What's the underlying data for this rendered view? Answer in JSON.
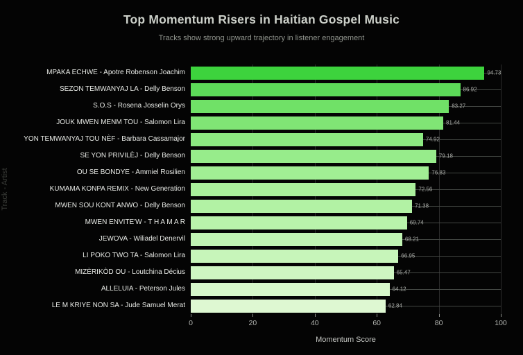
{
  "title": "Top Momentum Risers in Haitian Gospel Music",
  "subtitle": "Tracks show strong upward trajectory in listener engagement",
  "chart_data": {
    "type": "bar",
    "orientation": "horizontal",
    "title": "Top Momentum Risers in Haitian Gospel Music",
    "subtitle": "Tracks show strong upward trajectory in listener engagement",
    "xlabel": "Momentum Score",
    "ylabel": "Track - Artist",
    "xlim": [
      0,
      100
    ],
    "x_ticks": [
      0,
      20,
      40,
      60,
      80,
      100
    ],
    "grid": true,
    "legend": false,
    "background_color": "#040404",
    "categories": [
      "MPAKA ECHWE - Apotre Robenson Joachim",
      "SEZON TEMWANYAJ LA - Delly Benson",
      "S.O.S - Rosena Josselin Orys",
      "JOUK MWEN MENM TOU - Salomon Lira",
      "YON TEMWANYAJ TOU NÈF - Barbara Cassamajor",
      "SE YON PRIVILÈJ - Delly Benson",
      "OU SE BONDYE - Ammiel Rosilien",
      "KUMAMA KONPA REMIX - New Generation",
      "MWEN SOU KONT ANWO - Delly Benson",
      "MWEN ENVITE'W - T H A M A R",
      "JEWOVA - Wiliadel Denervil",
      "LI POKO TWO TA - Salomon Lira",
      "MIZÈRIKÒD OU - Loutchina Décius",
      "ALLELUIA - Peterson Jules",
      "LE M KRIYE NON SA - Jude Samuel Merat"
    ],
    "values": [
      94.73,
      86.92,
      83.27,
      81.44,
      74.92,
      79.18,
      76.83,
      72.56,
      71.38,
      69.74,
      68.21,
      66.95,
      65.47,
      64.12,
      62.84
    ],
    "bar_colors": [
      "#3dd33d",
      "#5cdb58",
      "#70e167",
      "#80e575",
      "#8ce981",
      "#97ec8b",
      "#a1ee94",
      "#aaf09c",
      "#b2f2a4",
      "#b9f3ab",
      "#c0f4b3",
      "#c7f5ba",
      "#cef6c2",
      "#d6f7ca",
      "#def8d2"
    ]
  }
}
